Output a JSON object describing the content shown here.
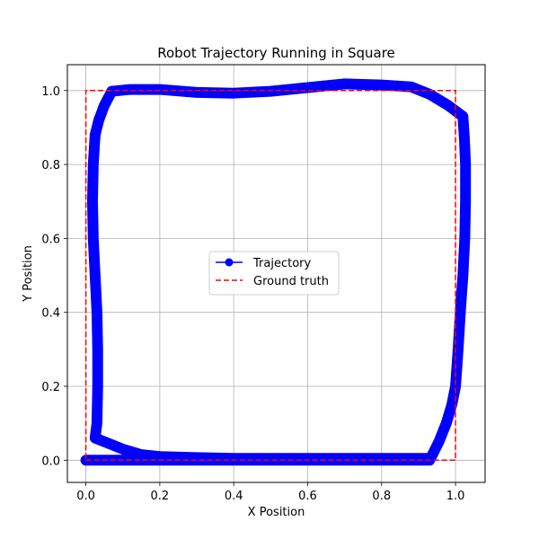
{
  "chart_data": {
    "type": "line",
    "title": "Robot Trajectory Running in Square",
    "xlabel": "X Position",
    "ylabel": "Y Position",
    "xlim": [
      -0.05,
      1.08
    ],
    "ylim": [
      -0.06,
      1.07
    ],
    "xticks": [
      "0.0",
      "0.2",
      "0.4",
      "0.6",
      "0.8",
      "1.0"
    ],
    "yticks": [
      "0.0",
      "0.2",
      "0.4",
      "0.6",
      "0.8",
      "1.0"
    ],
    "grid": true,
    "legend_position": "center",
    "series": [
      {
        "name": "Trajectory",
        "color": "#0000ff",
        "style": "solid-with-circle-markers",
        "points": [
          [
            0.0,
            0.0
          ],
          [
            0.1,
            0.0
          ],
          [
            0.2,
            0.0
          ],
          [
            0.3,
            0.0
          ],
          [
            0.4,
            0.0
          ],
          [
            0.5,
            0.0
          ],
          [
            0.6,
            0.0
          ],
          [
            0.7,
            0.0
          ],
          [
            0.8,
            0.0
          ],
          [
            0.88,
            0.0
          ],
          [
            0.93,
            0.0
          ],
          [
            0.955,
            0.05
          ],
          [
            0.975,
            0.1
          ],
          [
            0.99,
            0.15
          ],
          [
            1.0,
            0.2
          ],
          [
            1.007,
            0.3
          ],
          [
            1.013,
            0.4
          ],
          [
            1.02,
            0.5
          ],
          [
            1.025,
            0.6
          ],
          [
            1.027,
            0.7
          ],
          [
            1.027,
            0.8
          ],
          [
            1.024,
            0.87
          ],
          [
            1.02,
            0.93
          ],
          [
            0.98,
            0.96
          ],
          [
            0.93,
            0.99
          ],
          [
            0.88,
            1.01
          ],
          [
            0.8,
            1.015
          ],
          [
            0.7,
            1.018
          ],
          [
            0.6,
            1.008
          ],
          [
            0.5,
            0.998
          ],
          [
            0.4,
            0.993
          ],
          [
            0.3,
            0.995
          ],
          [
            0.2,
            1.003
          ],
          [
            0.12,
            1.003
          ],
          [
            0.07,
            0.998
          ],
          [
            0.05,
            0.96
          ],
          [
            0.035,
            0.92
          ],
          [
            0.025,
            0.88
          ],
          [
            0.02,
            0.8
          ],
          [
            0.018,
            0.7
          ],
          [
            0.02,
            0.6
          ],
          [
            0.025,
            0.5
          ],
          [
            0.03,
            0.4
          ],
          [
            0.032,
            0.3
          ],
          [
            0.032,
            0.2
          ],
          [
            0.03,
            0.1
          ],
          [
            0.025,
            0.06
          ],
          [
            0.05,
            0.05
          ],
          [
            0.1,
            0.03
          ],
          [
            0.15,
            0.015
          ],
          [
            0.2,
            0.01
          ],
          [
            0.3,
            0.007
          ],
          [
            0.4,
            0.005
          ],
          [
            0.5,
            0.005
          ],
          [
            0.6,
            0.005
          ],
          [
            0.7,
            0.005
          ],
          [
            0.8,
            0.005
          ],
          [
            0.9,
            0.005
          ],
          [
            0.93,
            0.005
          ]
        ]
      },
      {
        "name": "Ground truth",
        "color": "#ff0000",
        "style": "dashed",
        "points": [
          [
            0.0,
            0.0
          ],
          [
            1.0,
            0.0
          ],
          [
            1.0,
            1.0
          ],
          [
            0.0,
            1.0
          ],
          [
            0.0,
            0.0
          ]
        ]
      }
    ]
  }
}
